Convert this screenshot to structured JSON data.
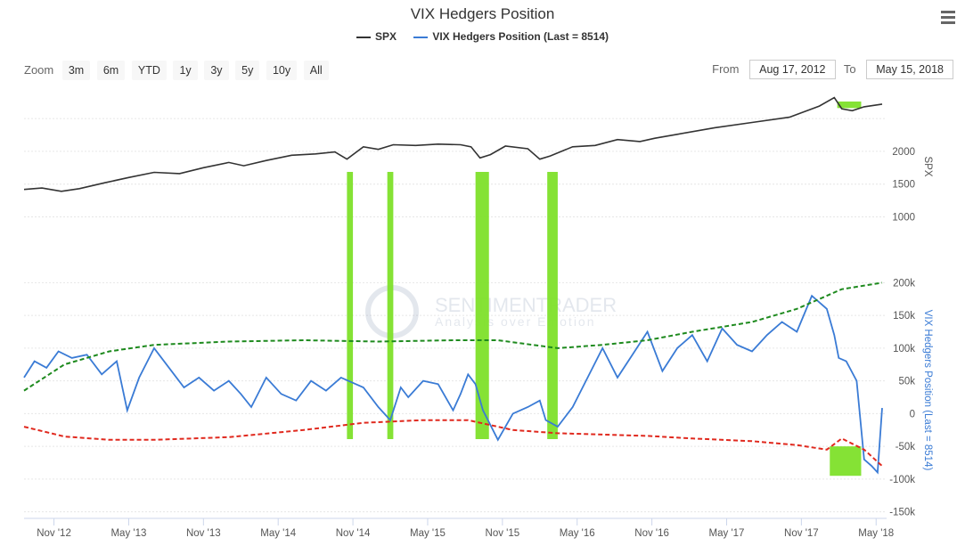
{
  "title": "VIX Hedgers Position",
  "legend": [
    {
      "label": "SPX",
      "color": "#333333"
    },
    {
      "label": "VIX Hedgers Position (Last = 8514)",
      "color": "#3a7bd5"
    }
  ],
  "zoom": {
    "label": "Zoom",
    "buttons": [
      "3m",
      "6m",
      "YTD",
      "1y",
      "3y",
      "5y",
      "10y",
      "All"
    ]
  },
  "range": {
    "from_label": "From",
    "from_value": "Aug 17, 2012",
    "to_label": "To",
    "to_value": "May 15, 2018"
  },
  "watermark": {
    "name": "SENTIMENTRADER",
    "tagline": "Analysis over Emotion"
  },
  "icons": {
    "menu": "hamburger-menu-icon"
  },
  "chart_data": [
    {
      "type": "line",
      "panel": "top",
      "ylabel": "SPX",
      "ylim": [
        300,
        2950
      ],
      "yticks": [
        "1000",
        "1500",
        "2000"
      ],
      "series": [
        {
          "name": "SPX",
          "color": "#333333",
          "x": [
            2012.63,
            2012.75,
            2012.88,
            2013.0,
            2013.17,
            2013.33,
            2013.5,
            2013.67,
            2013.83,
            2014.0,
            2014.1,
            2014.25,
            2014.42,
            2014.58,
            2014.71,
            2014.79,
            2014.9,
            2015.0,
            2015.1,
            2015.25,
            2015.4,
            2015.55,
            2015.62,
            2015.68,
            2015.75,
            2015.85,
            2016.0,
            2016.08,
            2016.15,
            2016.3,
            2016.45,
            2016.6,
            2016.75,
            2016.85,
            2017.0,
            2017.25,
            2017.5,
            2017.75,
            2017.95,
            2018.05,
            2018.1,
            2018.17,
            2018.25,
            2018.37
          ],
          "values": [
            1418,
            1440,
            1390,
            1430,
            1520,
            1600,
            1680,
            1660,
            1750,
            1830,
            1780,
            1860,
            1940,
            1960,
            1990,
            1880,
            2070,
            2030,
            2100,
            2090,
            2110,
            2100,
            2070,
            1900,
            1950,
            2080,
            2040,
            1880,
            1930,
            2070,
            2090,
            2180,
            2150,
            2200,
            2260,
            2360,
            2440,
            2520,
            2690,
            2820,
            2650,
            2620,
            2680,
            2720
          ]
        }
      ]
    },
    {
      "type": "line",
      "panel": "bottom",
      "ylabel": "VIX Hedgers Position (Last = 8514)",
      "ylim": [
        -160000,
        210000
      ],
      "yticks": [
        "-150k",
        "-100k",
        "-50k",
        "0",
        "50k",
        "100k",
        "150k",
        "200k"
      ],
      "series": [
        {
          "name": "VIX Hedgers Position (Last = 8514)",
          "color": "#3a7bd5",
          "x": [
            2012.63,
            2012.7,
            2012.78,
            2012.86,
            2012.95,
            2013.05,
            2013.15,
            2013.25,
            2013.32,
            2013.4,
            2013.5,
            2013.6,
            2013.7,
            2013.8,
            2013.9,
            2014.0,
            2014.08,
            2014.15,
            2014.25,
            2014.35,
            2014.45,
            2014.55,
            2014.65,
            2014.75,
            2014.85,
            2014.9,
            2015.0,
            2015.08,
            2015.15,
            2015.2,
            2015.3,
            2015.4,
            2015.5,
            2015.55,
            2015.6,
            2015.65,
            2015.7,
            2015.8,
            2015.9,
            2016.0,
            2016.08,
            2016.12,
            2016.2,
            2016.3,
            2016.4,
            2016.5,
            2016.6,
            2016.7,
            2016.8,
            2016.9,
            2017.0,
            2017.1,
            2017.2,
            2017.3,
            2017.4,
            2017.5,
            2017.6,
            2017.7,
            2017.8,
            2017.9,
            2018.0,
            2018.05,
            2018.08,
            2018.13,
            2018.2,
            2018.25,
            2018.3,
            2018.34,
            2018.37
          ],
          "values": [
            55000,
            80000,
            70000,
            95000,
            85000,
            90000,
            60000,
            80000,
            5000,
            55000,
            100000,
            70000,
            40000,
            55000,
            35000,
            50000,
            30000,
            10000,
            55000,
            30000,
            20000,
            50000,
            35000,
            55000,
            45000,
            40000,
            10000,
            -10000,
            40000,
            25000,
            50000,
            45000,
            5000,
            30000,
            60000,
            45000,
            5000,
            -40000,
            0,
            10000,
            20000,
            -10000,
            -20000,
            10000,
            55000,
            100000,
            55000,
            90000,
            125000,
            65000,
            100000,
            120000,
            80000,
            130000,
            105000,
            95000,
            120000,
            140000,
            125000,
            180000,
            160000,
            120000,
            85000,
            80000,
            50000,
            -70000,
            -80000,
            -90000,
            8514
          ]
        },
        {
          "name": "upper band",
          "color": "#1e8a1e",
          "x": [
            2012.63,
            2012.9,
            2013.2,
            2013.5,
            2014.0,
            2014.5,
            2015.0,
            2015.5,
            2015.8,
            2016.2,
            2016.5,
            2016.8,
            2017.1,
            2017.5,
            2017.8,
            2018.1,
            2018.37
          ],
          "values": [
            35000,
            75000,
            95000,
            105000,
            110000,
            112000,
            110000,
            112000,
            112000,
            100000,
            105000,
            112000,
            125000,
            140000,
            160000,
            190000,
            200000
          ]
        },
        {
          "name": "lower band",
          "color": "#e0291e",
          "x": [
            2012.63,
            2012.9,
            2013.2,
            2013.5,
            2014.0,
            2014.5,
            2014.9,
            2015.3,
            2015.6,
            2015.9,
            2016.2,
            2016.5,
            2016.8,
            2017.1,
            2017.5,
            2017.8,
            2018.0,
            2018.1,
            2018.25,
            2018.37
          ],
          "values": [
            -20000,
            -35000,
            -40000,
            -40000,
            -36000,
            -25000,
            -14000,
            -10000,
            -10000,
            -25000,
            -30000,
            -32000,
            -34000,
            -38000,
            -42000,
            -48000,
            -55000,
            -38000,
            -55000,
            -80000
          ]
        }
      ]
    }
  ],
  "x_axis": {
    "labels": [
      "Nov '12",
      "May '13",
      "Nov '13",
      "May '14",
      "Nov '14",
      "May '15",
      "Nov '15",
      "May '16",
      "Nov '16",
      "May '17",
      "Nov '17",
      "May '18"
    ],
    "label_years": [
      2012.83,
      2013.33,
      2013.83,
      2014.33,
      2014.83,
      2015.33,
      2015.83,
      2016.33,
      2016.83,
      2017.33,
      2017.83,
      2018.33
    ],
    "xlim": [
      2012.63,
      2018.4
    ]
  },
  "highlights": {
    "color": "#7ee02a",
    "vertical_bands": [
      [
        2014.79,
        2014.83
      ],
      [
        2015.06,
        2015.1
      ],
      [
        2015.65,
        2015.74
      ],
      [
        2016.13,
        2016.2
      ]
    ],
    "boxes": [
      {
        "x": [
          2018.07,
          2018.23
        ],
        "panel": "top",
        "y": [
          2660,
          2760
        ]
      },
      {
        "x": [
          2018.02,
          2018.23
        ],
        "panel": "bottom",
        "y": [
          -95000,
          -50000
        ]
      }
    ]
  }
}
